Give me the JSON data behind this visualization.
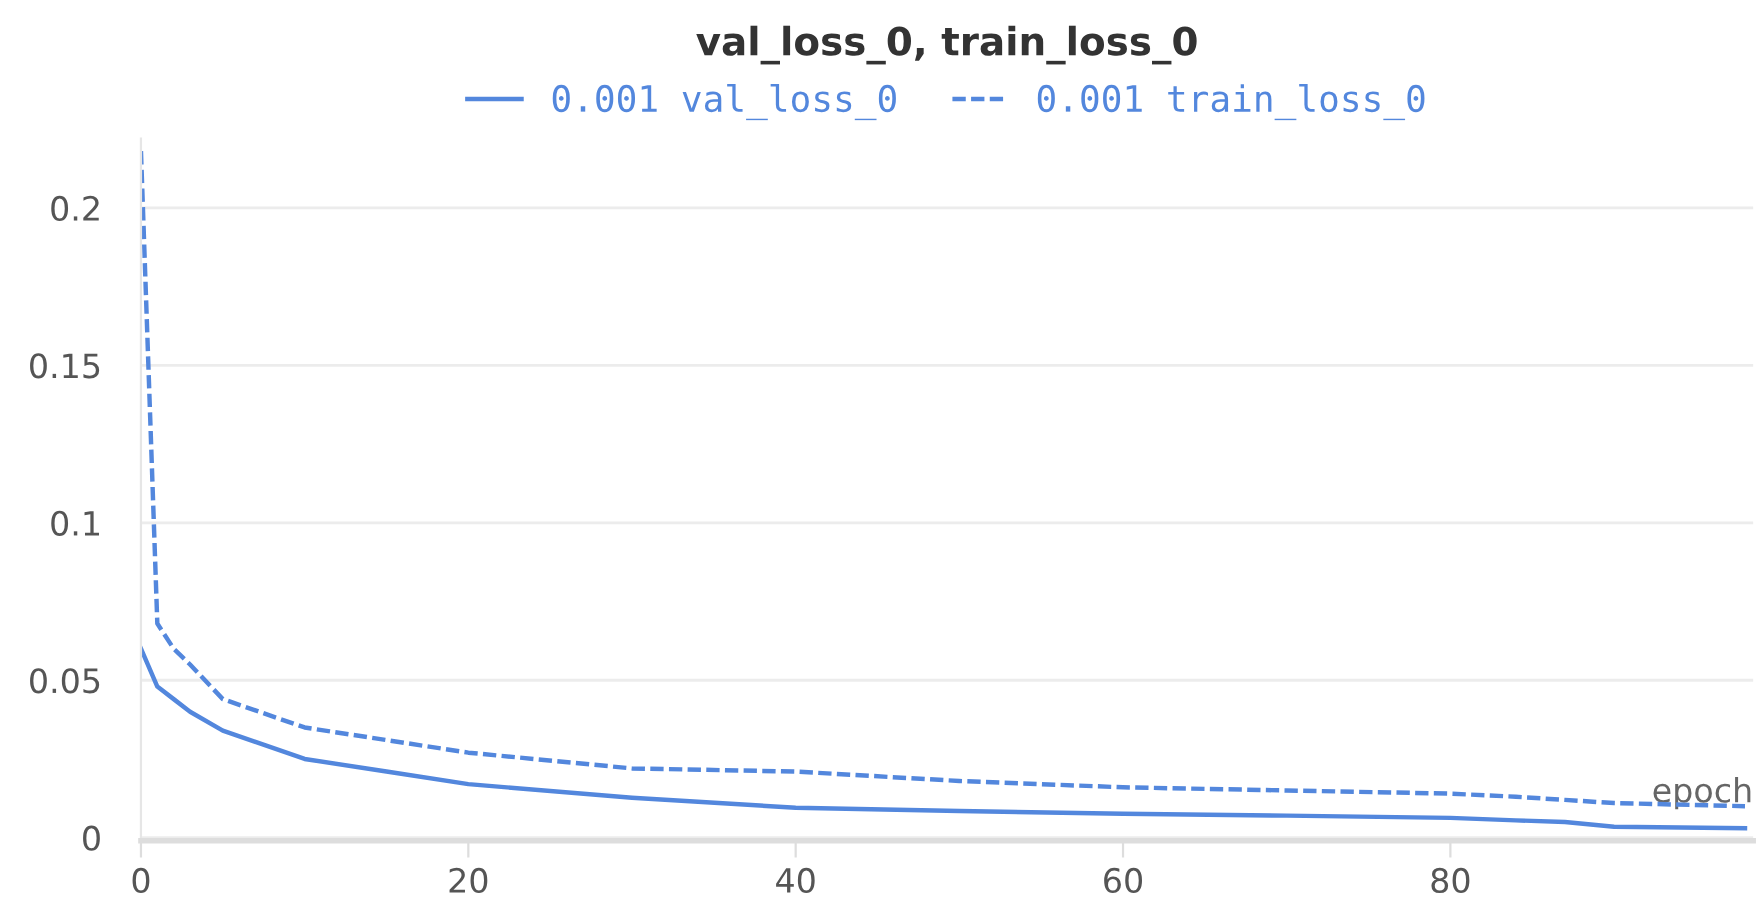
{
  "chart_data": {
    "type": "line",
    "title": "val_loss_0, train_loss_0",
    "xlabel": "epoch",
    "x": [
      0,
      1,
      2,
      3,
      5,
      10,
      15,
      20,
      30,
      40,
      50,
      60,
      70,
      80,
      84,
      87,
      90,
      98
    ],
    "series": [
      {
        "name": "0.001 val_loss_0",
        "color": "#5387dd",
        "line_style": "solid",
        "values": [
          0.06,
          0.048,
          0.044,
          0.04,
          0.034,
          0.025,
          0.021,
          0.017,
          0.0127,
          0.0095,
          0.0085,
          0.0076,
          0.007,
          0.0063,
          0.0055,
          0.005,
          0.0035,
          0.003
        ]
      },
      {
        "name": "0.001 train_loss_0",
        "color": "#5387dd",
        "line_style": "dashed",
        "values": [
          0.218,
          0.068,
          0.06,
          0.055,
          0.044,
          0.035,
          0.031,
          0.027,
          0.022,
          0.021,
          0.018,
          0.016,
          0.015,
          0.014,
          0.013,
          0.012,
          0.011,
          0.01
        ]
      }
    ],
    "xlim": [
      0,
      98.5
    ],
    "ylim": [
      -0.001,
      0.222
    ],
    "xticks": [
      0,
      20,
      40,
      60,
      80
    ],
    "yticks": [
      0,
      0.05,
      0.1,
      0.15,
      0.2
    ],
    "grid": "y",
    "legend": "top",
    "marker": "none"
  }
}
